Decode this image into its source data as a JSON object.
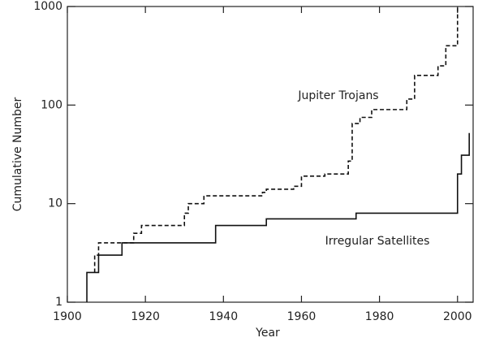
{
  "chart_data": {
    "type": "step",
    "x_label": "Year",
    "y_label": "Cumulative Number",
    "xlim": [
      1900,
      2004
    ],
    "xticks": [
      1900,
      1920,
      1940,
      1960,
      1980,
      2000
    ],
    "ylim": [
      1,
      1000
    ],
    "yticks": [
      1,
      10,
      100,
      1000
    ],
    "log_y": true,
    "series": [
      {
        "name": "Irregular Satellites",
        "color": "#111111",
        "dash": false,
        "x": [
          1905,
          1905,
          1908,
          1914,
          1938,
          1951,
          1974,
          2000,
          2001,
          2003
        ],
        "values": [
          1,
          2,
          3,
          4,
          6,
          7,
          8,
          20,
          31,
          52
        ]
      },
      {
        "name": "Jupiter Trojans",
        "color": "#111111",
        "dash": true,
        "x": [
          1907,
          1907,
          1908,
          1917,
          1919,
          1930,
          1931,
          1935,
          1950,
          1951,
          1958,
          1960,
          1966,
          1972,
          1973,
          1975,
          1978,
          1987,
          1989,
          1995,
          1997,
          2000
        ],
        "values": [
          2,
          3,
          4,
          5,
          6,
          8,
          10,
          12,
          13,
          14,
          15,
          19,
          20,
          27,
          65,
          75,
          90,
          115,
          200,
          250,
          400,
          1000
        ]
      }
    ]
  }
}
